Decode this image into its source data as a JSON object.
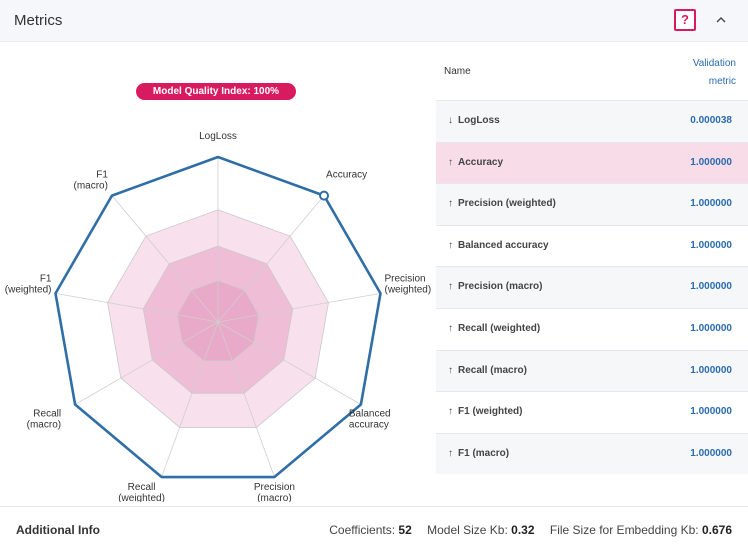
{
  "header": {
    "title": "Metrics",
    "help_label": "?",
    "collapse_icon": "chevron-up-icon"
  },
  "badge": {
    "label": "Model Quality Index: 100%"
  },
  "radar": {
    "axes": [
      "LogLoss",
      "Accuracy",
      "Precision\n(weighted)",
      "Balanced\naccuracy",
      "Precision\n(macro)",
      "Recall\n(weighted)",
      "Recall\n(macro)",
      "F1\n(weighted)",
      "F1\n(macro)"
    ],
    "colors": {
      "polygon": "#2f6ea6",
      "ring_dark": "#e9a9c8",
      "ring_light": "#f8e0ec"
    }
  },
  "table": {
    "headers": {
      "name": "Name",
      "metric": "Validation metric"
    },
    "rows": [
      {
        "arrow": "↓",
        "name": "LogLoss",
        "value": "0.000038",
        "highlight": false
      },
      {
        "arrow": "↑",
        "name": "Accuracy",
        "value": "1.000000",
        "highlight": true
      },
      {
        "arrow": "↑",
        "name": "Precision (weighted)",
        "value": "1.000000",
        "highlight": false
      },
      {
        "arrow": "↑",
        "name": "Balanced accuracy",
        "value": "1.000000",
        "highlight": false
      },
      {
        "arrow": "↑",
        "name": "Precision (macro)",
        "value": "1.000000",
        "highlight": false
      },
      {
        "arrow": "↑",
        "name": "Recall (weighted)",
        "value": "1.000000",
        "highlight": false
      },
      {
        "arrow": "↑",
        "name": "Recall (macro)",
        "value": "1.000000",
        "highlight": false
      },
      {
        "arrow": "↑",
        "name": "F1 (weighted)",
        "value": "1.000000",
        "highlight": false
      },
      {
        "arrow": "↑",
        "name": "F1 (macro)",
        "value": "1.000000",
        "highlight": false
      }
    ]
  },
  "footer": {
    "title": "Additional Info",
    "coefficients_label": "Coefficients:",
    "coefficients_value": "52",
    "model_size_label": "Model Size Kb:",
    "model_size_value": "0.32",
    "file_size_label": "File Size for Embedding Kb:",
    "file_size_value": "0.676"
  }
}
